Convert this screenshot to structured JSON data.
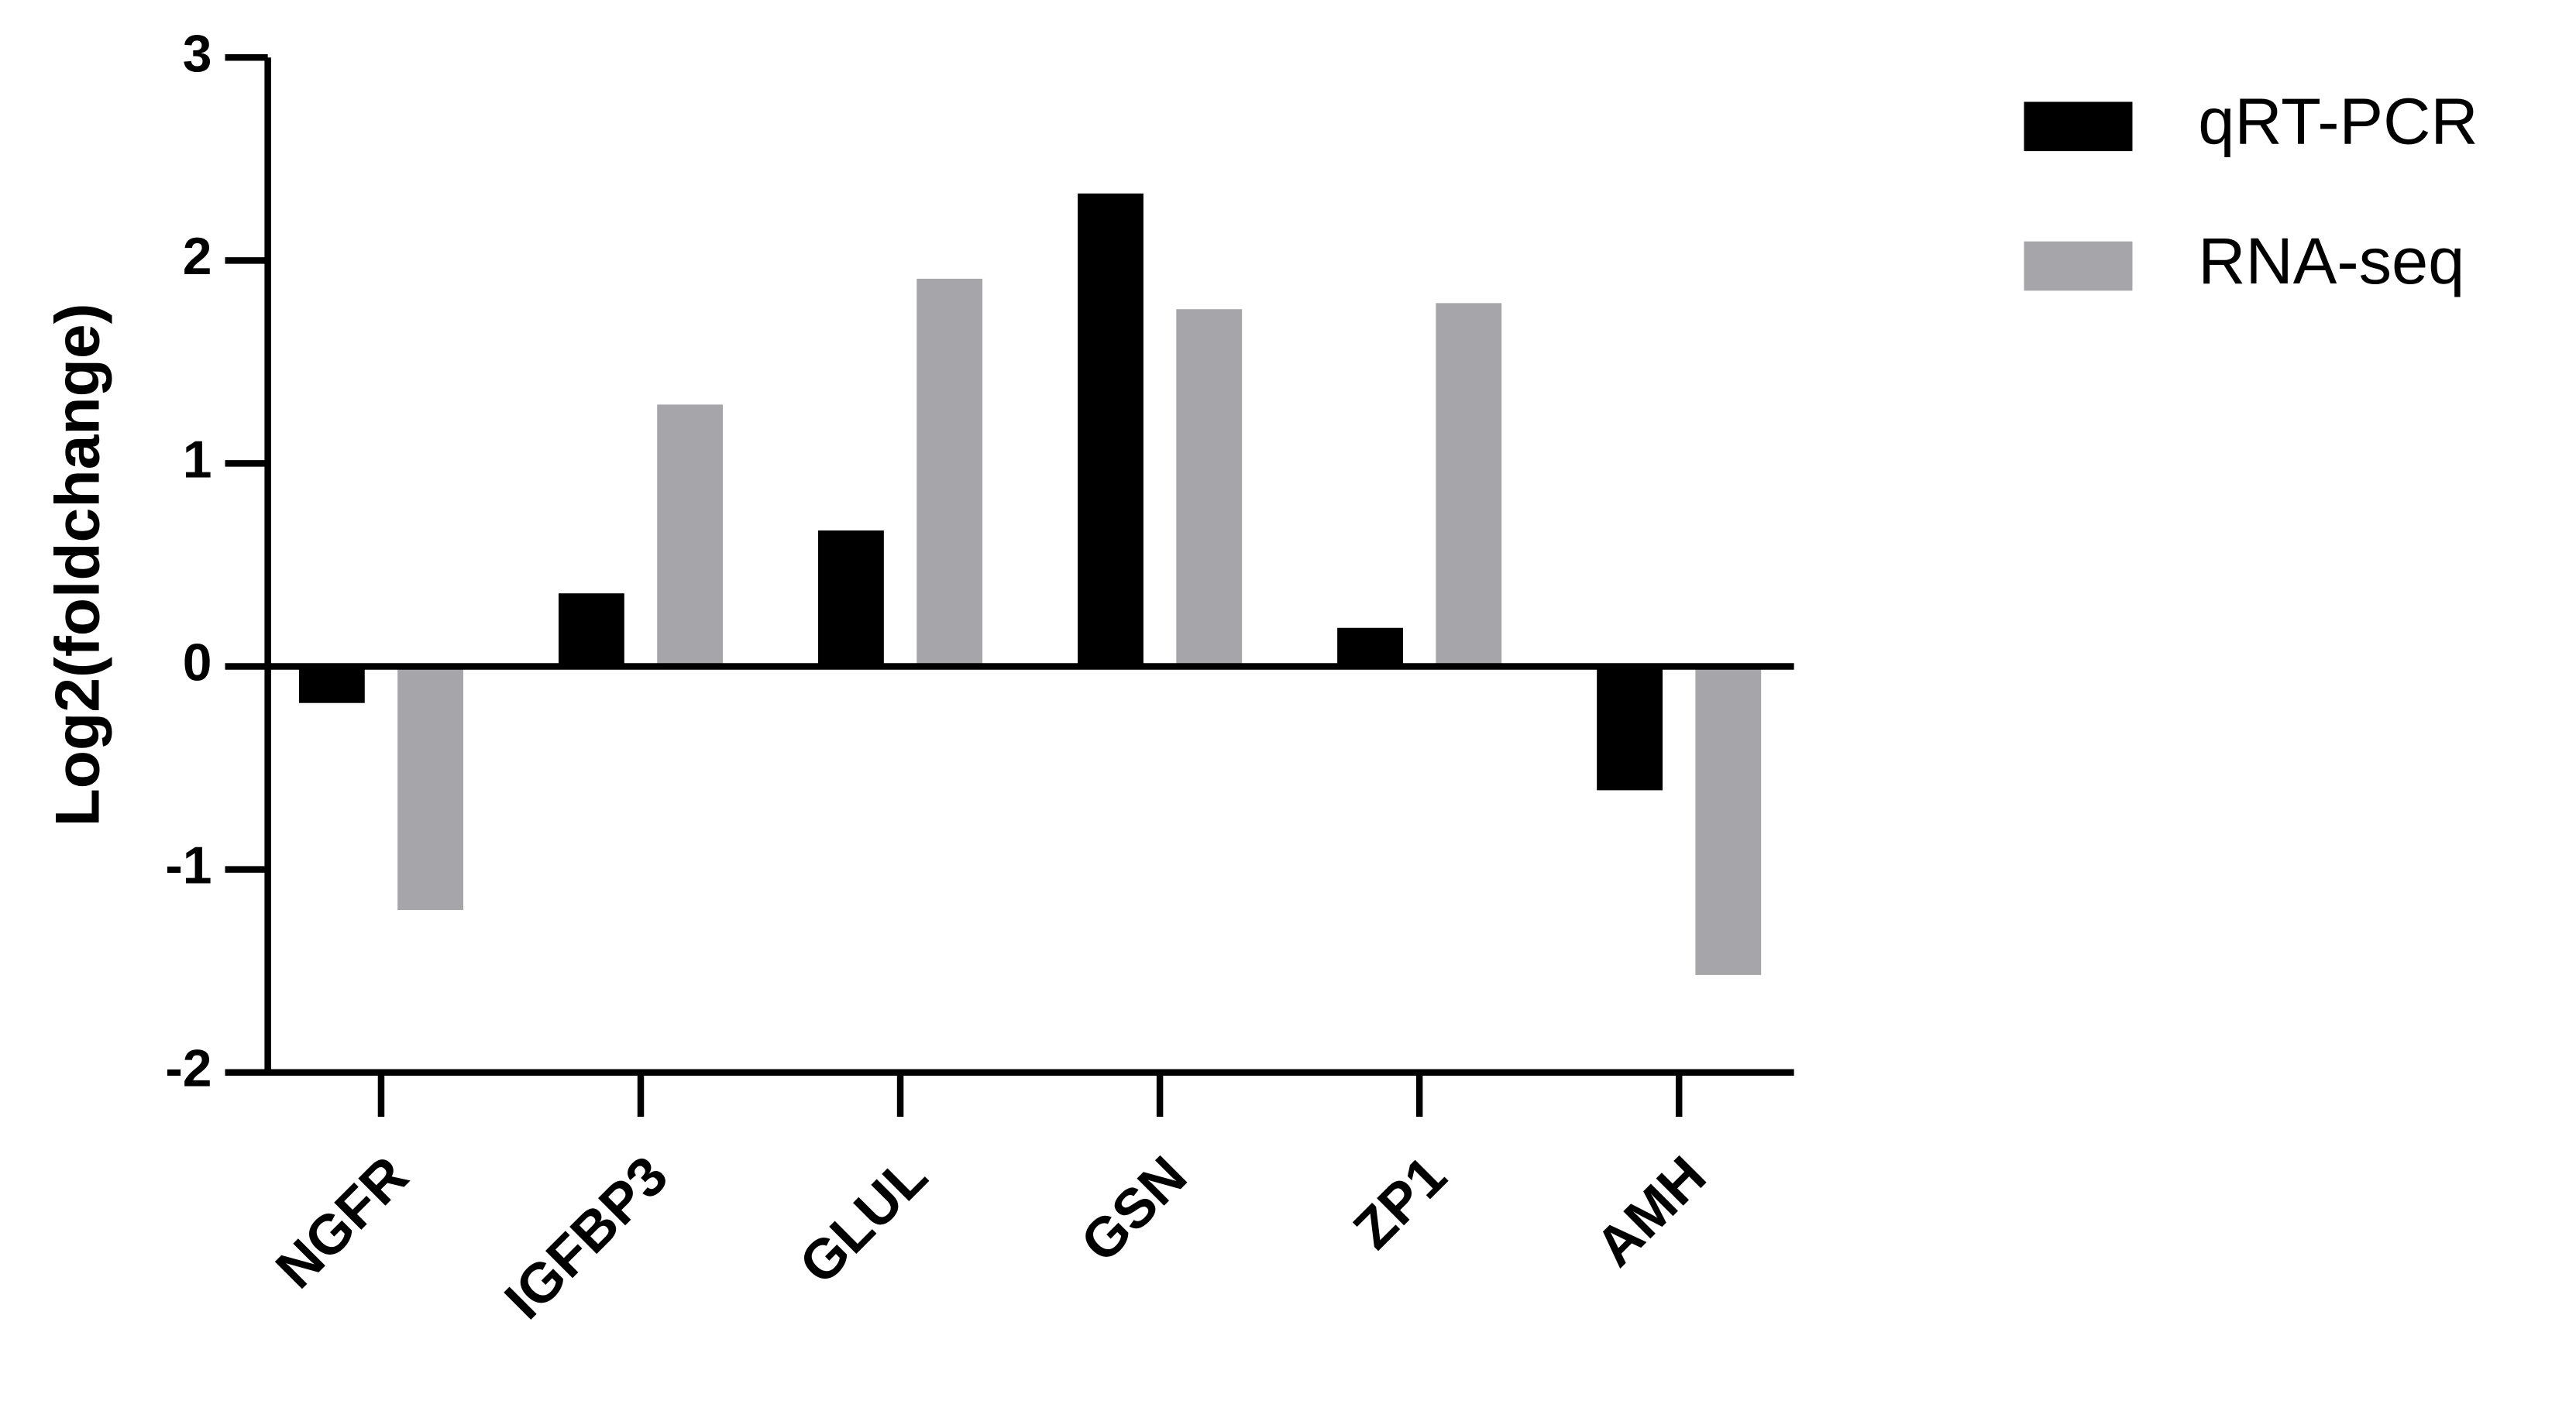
{
  "chart_data": {
    "type": "bar",
    "y_label": "Log2(foldchange)",
    "categories": [
      "NGFR",
      "IGFBP3",
      "GLUL",
      "GSN",
      "ZP1",
      "AMH"
    ],
    "series": [
      {
        "name": "qRT-PCR",
        "color": "#000000",
        "values": [
          -0.18,
          0.36,
          0.67,
          2.33,
          0.19,
          -0.61
        ]
      },
      {
        "name": "RNA-seq",
        "color": "#a6a5aa",
        "values": [
          -1.2,
          1.29,
          1.91,
          1.76,
          1.79,
          -1.52
        ]
      }
    ],
    "ylim": [
      -2,
      3
    ],
    "yticks": [
      -2,
      -1,
      0,
      1,
      2,
      3
    ],
    "legend": "right"
  }
}
